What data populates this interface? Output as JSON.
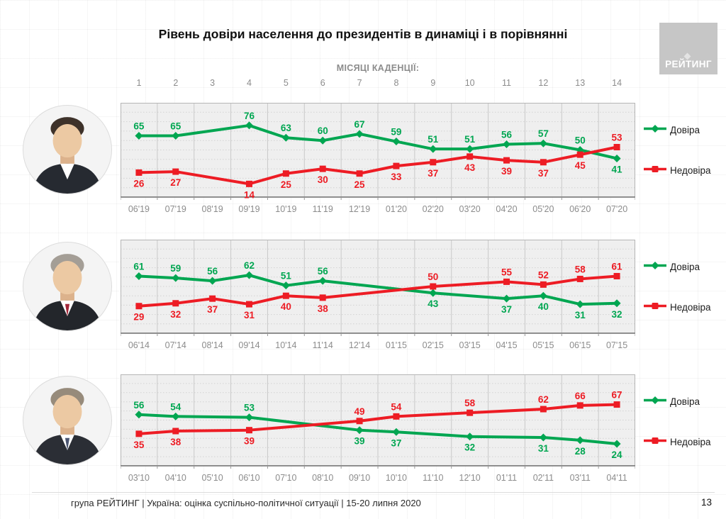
{
  "header": {
    "title": "Рівень довіри населення до президентів в динаміці і в порівнянні",
    "months_caption": "МІСЯЦІ КАДЕНЦІЇ:",
    "logo": "РЕЙТИНГ"
  },
  "months": [
    "1",
    "2",
    "3",
    "4",
    "5",
    "6",
    "7",
    "8",
    "9",
    "10",
    "11",
    "12",
    "13",
    "14"
  ],
  "legend": {
    "trust": "Довіра",
    "distrust": "Недовіра",
    "trust_color": "#00a651",
    "distrust_color": "#ed1c24"
  },
  "chart_data": [
    {
      "type": "line",
      "categories": [
        "06'19",
        "07'19",
        "08'19",
        "09'19",
        "10'19",
        "11'19",
        "12'19",
        "01'20",
        "02'20",
        "03'20",
        "04'20",
        "05'20",
        "06'20",
        "07'20"
      ],
      "series": [
        {
          "name": "Довіра",
          "color": "#00a651",
          "marker": "diamond",
          "values": [
            65,
            65,
            null,
            76,
            63,
            60,
            67,
            59,
            51,
            51,
            56,
            57,
            50,
            41
          ]
        },
        {
          "name": "Недовіра",
          "color": "#ed1c24",
          "marker": "square",
          "values": [
            26,
            27,
            null,
            14,
            25,
            30,
            25,
            33,
            37,
            43,
            39,
            37,
            45,
            53
          ]
        }
      ],
      "ylim": [
        0,
        100
      ],
      "grid": true,
      "legend_position": "right"
    },
    {
      "type": "line",
      "categories": [
        "06'14",
        "07'14",
        "08'14",
        "09'14",
        "10'14",
        "11'14",
        "12'14",
        "01'15",
        "02'15",
        "03'15",
        "04'15",
        "05'15",
        "06'15",
        "07'15"
      ],
      "series": [
        {
          "name": "Довіра",
          "color": "#00a651",
          "marker": "diamond",
          "values": [
            61,
            59,
            56,
            62,
            51,
            56,
            null,
            null,
            43,
            null,
            37,
            40,
            31,
            32
          ]
        },
        {
          "name": "Недовіра",
          "color": "#ed1c24",
          "marker": "square",
          "values": [
            29,
            32,
            37,
            31,
            40,
            38,
            null,
            null,
            50,
            null,
            55,
            52,
            58,
            61
          ]
        }
      ],
      "ylim": [
        0,
        100
      ],
      "grid": true,
      "legend_position": "right"
    },
    {
      "type": "line",
      "categories": [
        "03'10",
        "04'10",
        "05'10",
        "06'10",
        "07'10",
        "08'10",
        "09'10",
        "10'10",
        "11'10",
        "12'10",
        "01'11",
        "02'11",
        "03'11",
        "04'11"
      ],
      "series": [
        {
          "name": "Довіра",
          "color": "#00a651",
          "marker": "diamond",
          "values": [
            56,
            54,
            null,
            53,
            null,
            null,
            39,
            37,
            null,
            32,
            null,
            31,
            28,
            24
          ]
        },
        {
          "name": "Недовіра",
          "color": "#ed1c24",
          "marker": "square",
          "values": [
            35,
            38,
            null,
            39,
            null,
            null,
            49,
            54,
            null,
            58,
            null,
            62,
            66,
            67
          ]
        }
      ],
      "ylim": [
        0,
        100
      ],
      "grid": true,
      "legend_position": "right"
    }
  ],
  "footer": {
    "text": "група РЕЙТИНГ  |  Україна: оцінка суспільно-політичної ситуації  |  15-20 липня 2020",
    "page": "13"
  }
}
